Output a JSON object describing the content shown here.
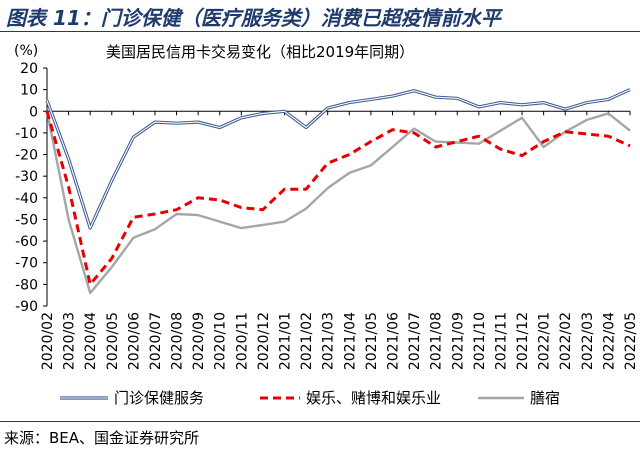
{
  "header": {
    "title": "图表 11：门诊保健（医疗服务类）消费已超疫情前水平"
  },
  "footer": {
    "source": "来源：BEA、国金证券研究所"
  },
  "chart_data": {
    "type": "line",
    "title": "美国居民信用卡交易变化（相比2019年同期）",
    "ylabel": "(%)",
    "xlabel": "",
    "ylim": [
      -90,
      20
    ],
    "yticks": [
      20,
      10,
      0,
      -10,
      -20,
      -30,
      -40,
      -50,
      -60,
      -70,
      -80,
      -90
    ],
    "grid": false,
    "legend_position": "bottom",
    "categories": [
      "2020/02",
      "2020/03",
      "2020/04",
      "2020/05",
      "2020/06",
      "2020/07",
      "2020/08",
      "2020/09",
      "2020/10",
      "2020/11",
      "2020/12",
      "2021/01",
      "2021/02",
      "2021/03",
      "2021/04",
      "2021/05",
      "2021/06",
      "2021/07",
      "2021/08",
      "2021/09",
      "2021/10",
      "2021/11",
      "2021/12",
      "2022/01",
      "2022/02",
      "2022/03",
      "2022/04",
      "2022/05"
    ],
    "series": [
      {
        "name": "门诊保健服务",
        "color": "#3c5a8f",
        "style": "double",
        "points": [
          [
            "2020/02",
            5
          ],
          [
            "2020/03",
            -22
          ],
          [
            "2020/04",
            -54
          ],
          [
            "2020/05",
            -32
          ],
          [
            "2020/06",
            -12
          ],
          [
            "2020/07",
            -5
          ],
          [
            "2020/08",
            -5.5
          ],
          [
            "2020/09",
            -5
          ],
          [
            "2020/10",
            -7.5
          ],
          [
            "2020/11",
            -3
          ],
          [
            "2020/12",
            -1
          ],
          [
            "2021/01",
            0
          ],
          [
            "2021/02",
            -7.5
          ],
          [
            "2021/03",
            1.5
          ],
          [
            "2021/04",
            4
          ],
          [
            "2021/05",
            5.5
          ],
          [
            "2021/06",
            7
          ],
          [
            "2021/07",
            9.5
          ],
          [
            "2021/08",
            6.5
          ],
          [
            "2021/09",
            6
          ],
          [
            "2021/10",
            2
          ],
          [
            "2021/11",
            4
          ],
          [
            "2021/12",
            3
          ],
          [
            "2022/01",
            4
          ],
          [
            "2022/02",
            1
          ],
          [
            "2022/03",
            4
          ],
          [
            "2022/04",
            5.5
          ],
          [
            "2022/05",
            10
          ]
        ]
      },
      {
        "name": "娱乐、赌博和娱乐业",
        "color": "#e60000",
        "style": "dashed",
        "points": [
          [
            "2020/02",
            0
          ],
          [
            "2020/03",
            -35
          ],
          [
            "2020/04",
            -80
          ],
          [
            "2020/05",
            -68
          ],
          [
            "2020/06",
            -49
          ],
          [
            "2020/07",
            -47.5
          ],
          [
            "2020/08",
            -45.5
          ],
          [
            "2020/09",
            -40
          ],
          [
            "2020/10",
            -41
          ],
          [
            "2020/11",
            -44.5
          ],
          [
            "2020/12",
            -45.5
          ],
          [
            "2021/01",
            -36
          ],
          [
            "2021/02",
            -36
          ],
          [
            "2021/03",
            -24
          ],
          [
            "2021/04",
            -20
          ],
          [
            "2021/05",
            -14
          ],
          [
            "2021/06",
            -8.5
          ],
          [
            "2021/07",
            -10
          ],
          [
            "2021/08",
            -16.5
          ],
          [
            "2021/09",
            -14
          ],
          [
            "2021/10",
            -11.5
          ],
          [
            "2021/11",
            -17.5
          ],
          [
            "2021/12",
            -20.5
          ],
          [
            "2022/01",
            -14
          ],
          [
            "2022/02",
            -9.5
          ],
          [
            "2022/03",
            -10.5
          ],
          [
            "2022/04",
            -11.5
          ],
          [
            "2022/05",
            -16
          ]
        ]
      },
      {
        "name": "膳宿",
        "color": "#a6a6a6",
        "style": "solid",
        "points": [
          [
            "2020/02",
            0
          ],
          [
            "2020/03",
            -50
          ],
          [
            "2020/04",
            -84
          ],
          [
            "2020/05",
            -72
          ],
          [
            "2020/06",
            -58.5
          ],
          [
            "2020/07",
            -54.5
          ],
          [
            "2020/08",
            -47.5
          ],
          [
            "2020/09",
            -48
          ],
          [
            "2020/10",
            -51
          ],
          [
            "2020/11",
            -54
          ],
          [
            "2020/12",
            -52.5
          ],
          [
            "2021/01",
            -51
          ],
          [
            "2021/02",
            -45
          ],
          [
            "2021/03",
            -35.5
          ],
          [
            "2021/04",
            -28.5
          ],
          [
            "2021/05",
            -25
          ],
          [
            "2021/06",
            -16.5
          ],
          [
            "2021/07",
            -8
          ],
          [
            "2021/08",
            -14
          ],
          [
            "2021/09",
            -14.5
          ],
          [
            "2021/10",
            -15
          ],
          [
            "2021/11",
            -9
          ],
          [
            "2021/12",
            -3
          ],
          [
            "2022/01",
            -16.5
          ],
          [
            "2022/02",
            -9.5
          ],
          [
            "2022/03",
            -4
          ],
          [
            "2022/04",
            -1
          ],
          [
            "2022/05",
            -9
          ]
        ]
      }
    ]
  }
}
